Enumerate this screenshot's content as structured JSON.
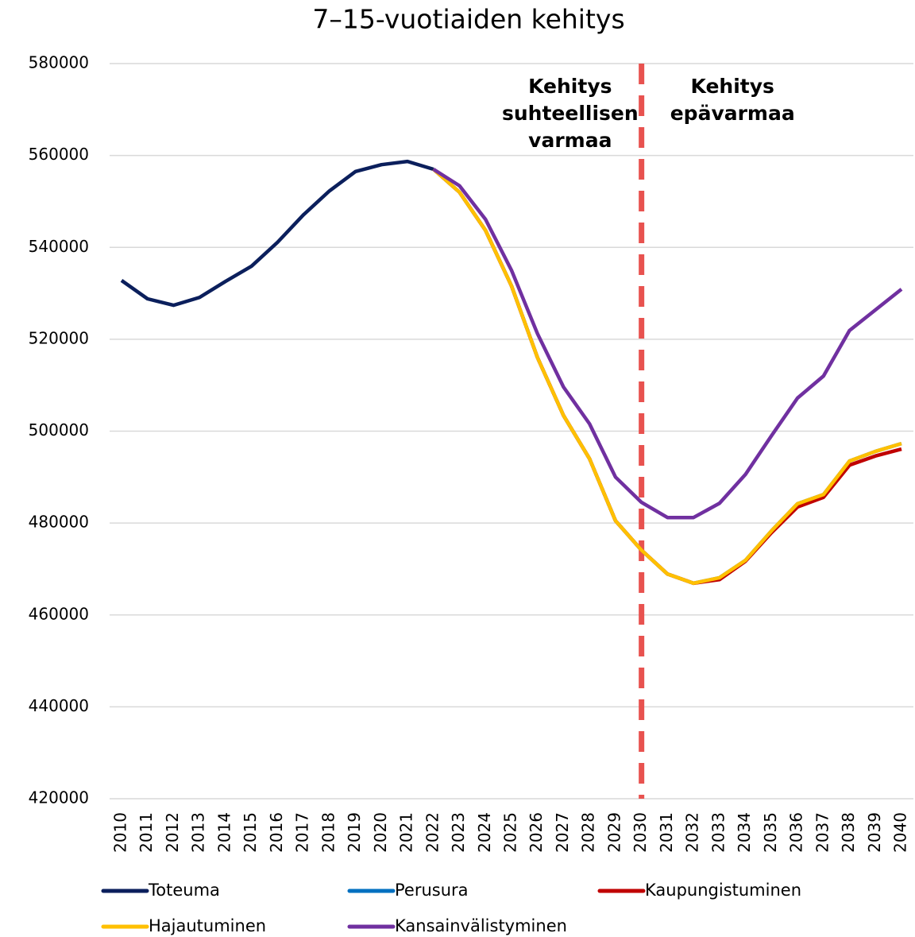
{
  "chart_data": {
    "type": "line",
    "title": "7–15-vuotiaiden kehitys",
    "categories": [
      "2010",
      "2011",
      "2012",
      "2013",
      "2014",
      "2015",
      "2016",
      "2017",
      "2018",
      "2019",
      "2020",
      "2021",
      "2022",
      "2023",
      "2024",
      "2025",
      "2026",
      "2027",
      "2028",
      "2029",
      "2030",
      "2031",
      "2032",
      "2033",
      "2034",
      "2035",
      "2036",
      "2037",
      "2038",
      "2039",
      "2040"
    ],
    "series": [
      {
        "name": "Toteuma",
        "color": "#0b1f5c",
        "values": [
          532800,
          528800,
          527400,
          529100,
          532600,
          535900,
          541100,
          547100,
          552300,
          556500,
          558000,
          558700,
          557000,
          null,
          null,
          null,
          null,
          null,
          null,
          null,
          null,
          null,
          null,
          null,
          null,
          null,
          null,
          null,
          null,
          null,
          null
        ]
      },
      {
        "name": "Perusura",
        "color": "#0070c0",
        "values": [
          null,
          null,
          null,
          null,
          null,
          null,
          null,
          null,
          null,
          null,
          null,
          null,
          557000,
          552000,
          543700,
          531600,
          516000,
          503400,
          494000,
          480500,
          474100,
          468900,
          466900,
          468100,
          471900,
          478300,
          484200,
          486200,
          493500,
          495600,
          497300
        ]
      },
      {
        "name": "Kaupungistuminen",
        "color": "#c00000",
        "values": [
          null,
          null,
          null,
          null,
          null,
          null,
          null,
          null,
          null,
          null,
          null,
          null,
          557000,
          552000,
          543700,
          531600,
          516000,
          503400,
          494000,
          480500,
          474100,
          468900,
          466900,
          467700,
          471700,
          477900,
          483500,
          485600,
          492600,
          494600,
          496100
        ]
      },
      {
        "name": "Hajautuminen",
        "color": "#ffc000",
        "values": [
          null,
          null,
          null,
          null,
          null,
          null,
          null,
          null,
          null,
          null,
          null,
          null,
          557000,
          552000,
          543700,
          531600,
          516000,
          503400,
          494000,
          480500,
          474100,
          468900,
          466900,
          468100,
          471900,
          478300,
          484200,
          486200,
          493500,
          495600,
          497300
        ]
      },
      {
        "name": "Kansainvälistyminen",
        "color": "#7030a0",
        "values": [
          null,
          null,
          null,
          null,
          null,
          null,
          null,
          null,
          null,
          null,
          null,
          null,
          557000,
          553400,
          546100,
          535000,
          521200,
          509600,
          501600,
          490000,
          484500,
          481200,
          481200,
          484300,
          490600,
          499000,
          507200,
          512000,
          521900,
          526400,
          530900
        ]
      }
    ],
    "ylim": [
      420000,
      580000
    ],
    "yticks": [
      420000,
      440000,
      460000,
      480000,
      500000,
      520000,
      540000,
      560000,
      580000
    ],
    "grid": true,
    "vline": {
      "x": "2030",
      "color": "#e8524f"
    },
    "annotations": [
      {
        "x": "2027",
        "lines": [
          "Kehitys",
          "suhteellisen",
          "varmaa"
        ]
      },
      {
        "x": "2033",
        "lines": [
          "Kehitys",
          "epävarmaa"
        ]
      }
    ]
  }
}
